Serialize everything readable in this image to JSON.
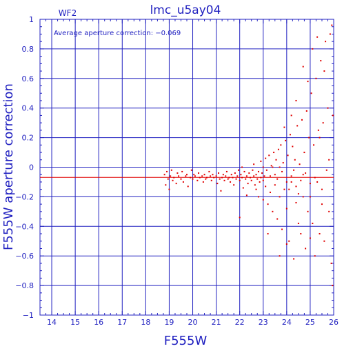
{
  "chart_data": {
    "type": "scatter",
    "title": "lmc_u5ay04",
    "panel_label": "WF2",
    "annotation": "Average aperture correction: −0.069",
    "xlabel": "F555W",
    "ylabel": "F555W aperture correction",
    "xlim": [
      13.5,
      26
    ],
    "ylim": [
      -1,
      1
    ],
    "x_ticks": [
      14,
      15,
      16,
      17,
      18,
      19,
      20,
      21,
      22,
      23,
      24,
      25,
      26
    ],
    "y_ticks": [
      -1,
      -0.8,
      -0.6,
      -0.4,
      -0.2,
      0,
      0.2,
      0.4,
      0.6,
      0.8,
      1
    ],
    "y_tick_labels": [
      "−1",
      "−0.8",
      "−0.6",
      "−0.4",
      "−0.2",
      "0",
      "0.2",
      "0.4",
      "0.6",
      "0.8",
      "1"
    ],
    "grid": true,
    "reference_line_y": -0.069,
    "colors": {
      "axes": "#2020c0",
      "points": "#e00000",
      "reference_line": "#e00000"
    },
    "series": [
      {
        "points": [
          [
            18.8,
            -0.05
          ],
          [
            18.85,
            -0.12
          ],
          [
            18.9,
            -0.03
          ],
          [
            18.95,
            -0.08
          ],
          [
            19.0,
            -0.15
          ],
          [
            19.05,
            -0.06
          ],
          [
            19.1,
            -0.02
          ],
          [
            19.15,
            -0.09
          ],
          [
            19.2,
            -0.07
          ],
          [
            19.3,
            -0.11
          ],
          [
            19.35,
            -0.04
          ],
          [
            19.4,
            -0.06
          ],
          [
            19.5,
            -0.08
          ],
          [
            19.55,
            -0.03
          ],
          [
            19.6,
            -0.1
          ],
          [
            19.7,
            -0.06
          ],
          [
            19.75,
            -0.05
          ],
          [
            19.8,
            -0.13
          ],
          [
            19.9,
            -0.07
          ],
          [
            19.95,
            -0.02
          ],
          [
            20.0,
            -0.08
          ],
          [
            20.05,
            -0.05
          ],
          [
            20.1,
            -0.06
          ],
          [
            20.2,
            -0.09
          ],
          [
            20.25,
            -0.04
          ],
          [
            20.3,
            -0.07
          ],
          [
            20.4,
            -0.06
          ],
          [
            20.45,
            -0.1
          ],
          [
            20.5,
            -0.05
          ],
          [
            20.55,
            -0.08
          ],
          [
            20.6,
            -0.07
          ],
          [
            20.7,
            -0.03
          ],
          [
            20.75,
            -0.06
          ],
          [
            20.8,
            -0.09
          ],
          [
            20.85,
            -0.05
          ],
          [
            20.9,
            -0.07
          ],
          [
            21.0,
            -0.06
          ],
          [
            21.05,
            -0.11
          ],
          [
            21.1,
            -0.04
          ],
          [
            21.15,
            -0.08
          ],
          [
            21.2,
            -0.16
          ],
          [
            21.25,
            -0.07
          ],
          [
            21.3,
            -0.05
          ],
          [
            21.35,
            -0.09
          ],
          [
            21.4,
            -0.06
          ],
          [
            21.45,
            -0.03
          ],
          [
            21.5,
            -0.08
          ],
          [
            21.55,
            -0.07
          ],
          [
            21.6,
            -0.1
          ],
          [
            21.65,
            -0.05
          ],
          [
            21.7,
            -0.07
          ],
          [
            21.75,
            -0.12
          ],
          [
            21.8,
            -0.04
          ],
          [
            21.85,
            -0.08
          ],
          [
            21.9,
            -0.06
          ],
          [
            21.95,
            -0.02
          ],
          [
            22.0,
            -0.09
          ],
          [
            22.05,
            -0.05
          ],
          [
            22.1,
            -0.07
          ],
          [
            22.15,
            -0.14
          ],
          [
            22.2,
            -0.03
          ],
          [
            22.25,
            -0.08
          ],
          [
            22.3,
            -0.06
          ],
          [
            22.35,
            -0.11
          ],
          [
            22.4,
            -0.04
          ],
          [
            22.45,
            -0.07
          ],
          [
            22.5,
            -0.09
          ],
          [
            22.55,
            -0.02
          ],
          [
            22.6,
            -0.06
          ],
          [
            22.65,
            -0.12
          ],
          [
            22.7,
            -0.05
          ],
          [
            22.75,
            -0.08
          ],
          [
            22.8,
            -0.03
          ],
          [
            22.85,
            -0.1
          ],
          [
            22.9,
            -0.07
          ],
          [
            22.95,
            -0.04
          ],
          [
            23.0,
            -0.09
          ],
          [
            23.05,
            -0.06
          ],
          [
            23.1,
            -0.13
          ],
          [
            23.15,
            -0.02
          ],
          [
            22.0,
            -0.34
          ],
          [
            22.1,
            0.0
          ],
          [
            22.3,
            -0.19
          ],
          [
            22.6,
            0.02
          ],
          [
            22.8,
            -0.2
          ],
          [
            22.9,
            0.04
          ],
          [
            23.0,
            -0.22
          ],
          [
            23.1,
            0.06
          ],
          [
            23.2,
            -0.25
          ],
          [
            23.25,
            0.08
          ],
          [
            23.3,
            -0.17
          ],
          [
            23.35,
            0.01
          ],
          [
            23.4,
            -0.3
          ],
          [
            23.45,
            0.1
          ],
          [
            23.5,
            -0.12
          ],
          [
            23.55,
            0.05
          ],
          [
            23.6,
            -0.35
          ],
          [
            23.65,
            0.12
          ],
          [
            23.7,
            -0.2
          ],
          [
            23.75,
            0.15
          ],
          [
            23.8,
            -0.42
          ],
          [
            23.85,
            0.03
          ],
          [
            23.9,
            -0.15
          ],
          [
            23.95,
            0.18
          ],
          [
            24.0,
            -0.28
          ],
          [
            24.05,
            0.08
          ],
          [
            24.1,
            -0.5
          ],
          [
            24.15,
            0.22
          ],
          [
            24.2,
            -0.1
          ],
          [
            24.25,
            0.14
          ],
          [
            24.3,
            -0.62
          ],
          [
            24.35,
            0.05
          ],
          [
            24.4,
            -0.24
          ],
          [
            24.45,
            0.28
          ],
          [
            24.5,
            -0.18
          ],
          [
            24.55,
            0.02
          ],
          [
            24.6,
            -0.45
          ],
          [
            24.65,
            0.32
          ],
          [
            24.7,
            -0.05
          ],
          [
            24.75,
            0.1
          ],
          [
            24.8,
            -0.55
          ],
          [
            24.85,
            0.38
          ],
          [
            24.9,
            -0.3
          ],
          [
            24.95,
            0.2
          ],
          [
            25.0,
            -0.2
          ],
          [
            25.05,
            0.5
          ],
          [
            25.1,
            -0.38
          ],
          [
            25.15,
            0.15
          ],
          [
            25.2,
            -0.6
          ],
          [
            25.25,
            0.6
          ],
          [
            25.3,
            -0.1
          ],
          [
            25.35,
            0.25
          ],
          [
            25.4,
            -0.45
          ],
          [
            25.45,
            0.72
          ],
          [
            25.5,
            -0.25
          ],
          [
            25.55,
            0.3
          ],
          [
            25.6,
            -0.5
          ],
          [
            25.65,
            0.85
          ],
          [
            25.7,
            -0.02
          ],
          [
            25.75,
            0.4
          ],
          [
            25.8,
            -0.3
          ],
          [
            25.85,
            0.9
          ],
          [
            25.9,
            -0.65
          ],
          [
            25.92,
            0.96
          ],
          [
            25.95,
            -0.8
          ],
          [
            25.97,
            0.35
          ],
          [
            25.6,
            0.65
          ],
          [
            25.3,
            0.88
          ],
          [
            24.9,
            0.58
          ],
          [
            24.7,
            0.68
          ],
          [
            25.1,
            0.8
          ],
          [
            25.4,
            0.2
          ],
          [
            24.4,
            0.45
          ],
          [
            24.2,
            0.35
          ],
          [
            23.9,
            0.27
          ],
          [
            23.7,
            -0.6
          ],
          [
            23.2,
            -0.45
          ],
          [
            24.0,
            -0.52
          ],
          [
            24.5,
            -0.38
          ],
          [
            25.0,
            -0.48
          ],
          [
            23.4,
            0.0
          ],
          [
            23.5,
            -0.05
          ],
          [
            23.6,
            -0.08
          ],
          [
            23.8,
            -0.03
          ],
          [
            24.0,
            -0.1
          ],
          [
            24.2,
            -0.06
          ],
          [
            24.4,
            -0.13
          ],
          [
            24.6,
            -0.09
          ],
          [
            24.8,
            -0.04
          ],
          [
            25.0,
            -0.11
          ],
          [
            23.3,
            -0.06
          ],
          [
            23.7,
            0.0
          ],
          [
            24.1,
            -0.15
          ],
          [
            24.3,
            -0.02
          ],
          [
            24.7,
            -0.2
          ],
          [
            25.2,
            -0.07
          ],
          [
            25.5,
            -0.15
          ],
          [
            25.8,
            0.05
          ],
          [
            23.0,
            0.0
          ],
          [
            22.7,
            -0.15
          ]
        ]
      }
    ]
  }
}
